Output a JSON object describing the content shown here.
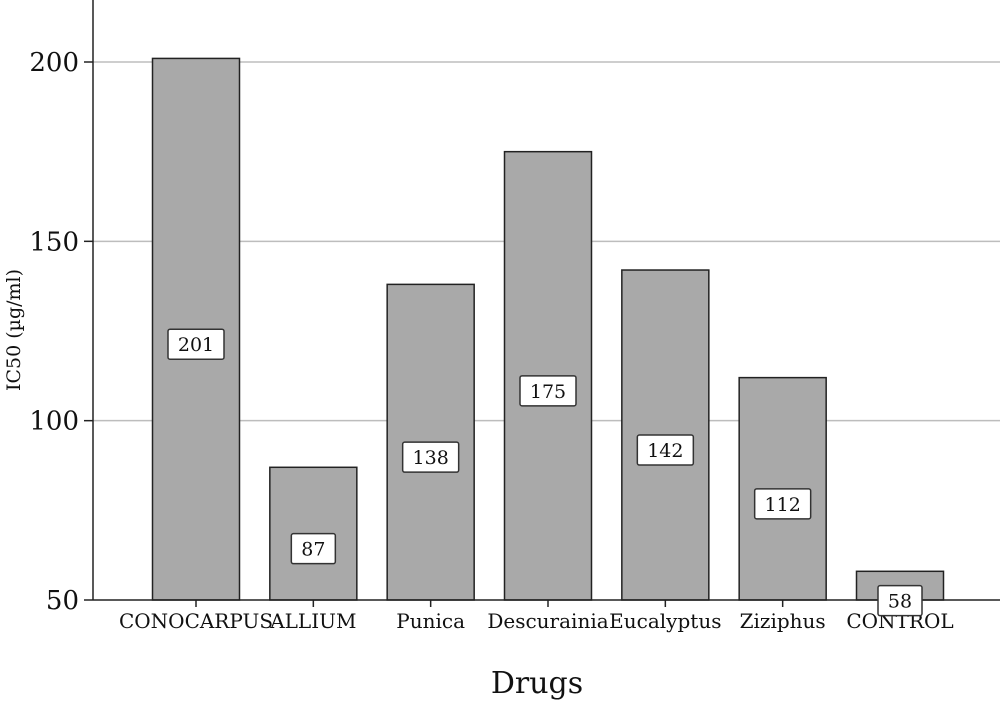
{
  "chart_data": {
    "type": "bar",
    "title": "",
    "xlabel": "Drugs",
    "ylabel": "IC50 (µg/ml)",
    "categories": [
      "CONOCARPUS",
      "ALLIUM",
      "Punica",
      "Descurainia",
      "Eucalyptus",
      "Ziziphus",
      "CONTROL"
    ],
    "values": [
      201,
      87,
      138,
      175,
      142,
      112,
      58
    ],
    "data_labels": [
      "201",
      "87",
      "138",
      "175",
      "142",
      "112",
      "58"
    ],
    "ylim": [
      50,
      217
    ],
    "yticks": [
      50,
      100,
      150,
      200
    ],
    "grid": true,
    "legend": "none",
    "colors": {
      "bar_fill": "#a9a9a9",
      "bar_stroke": "#222222",
      "grid": "#bdbdbd",
      "label_box": "#ffffff"
    }
  }
}
